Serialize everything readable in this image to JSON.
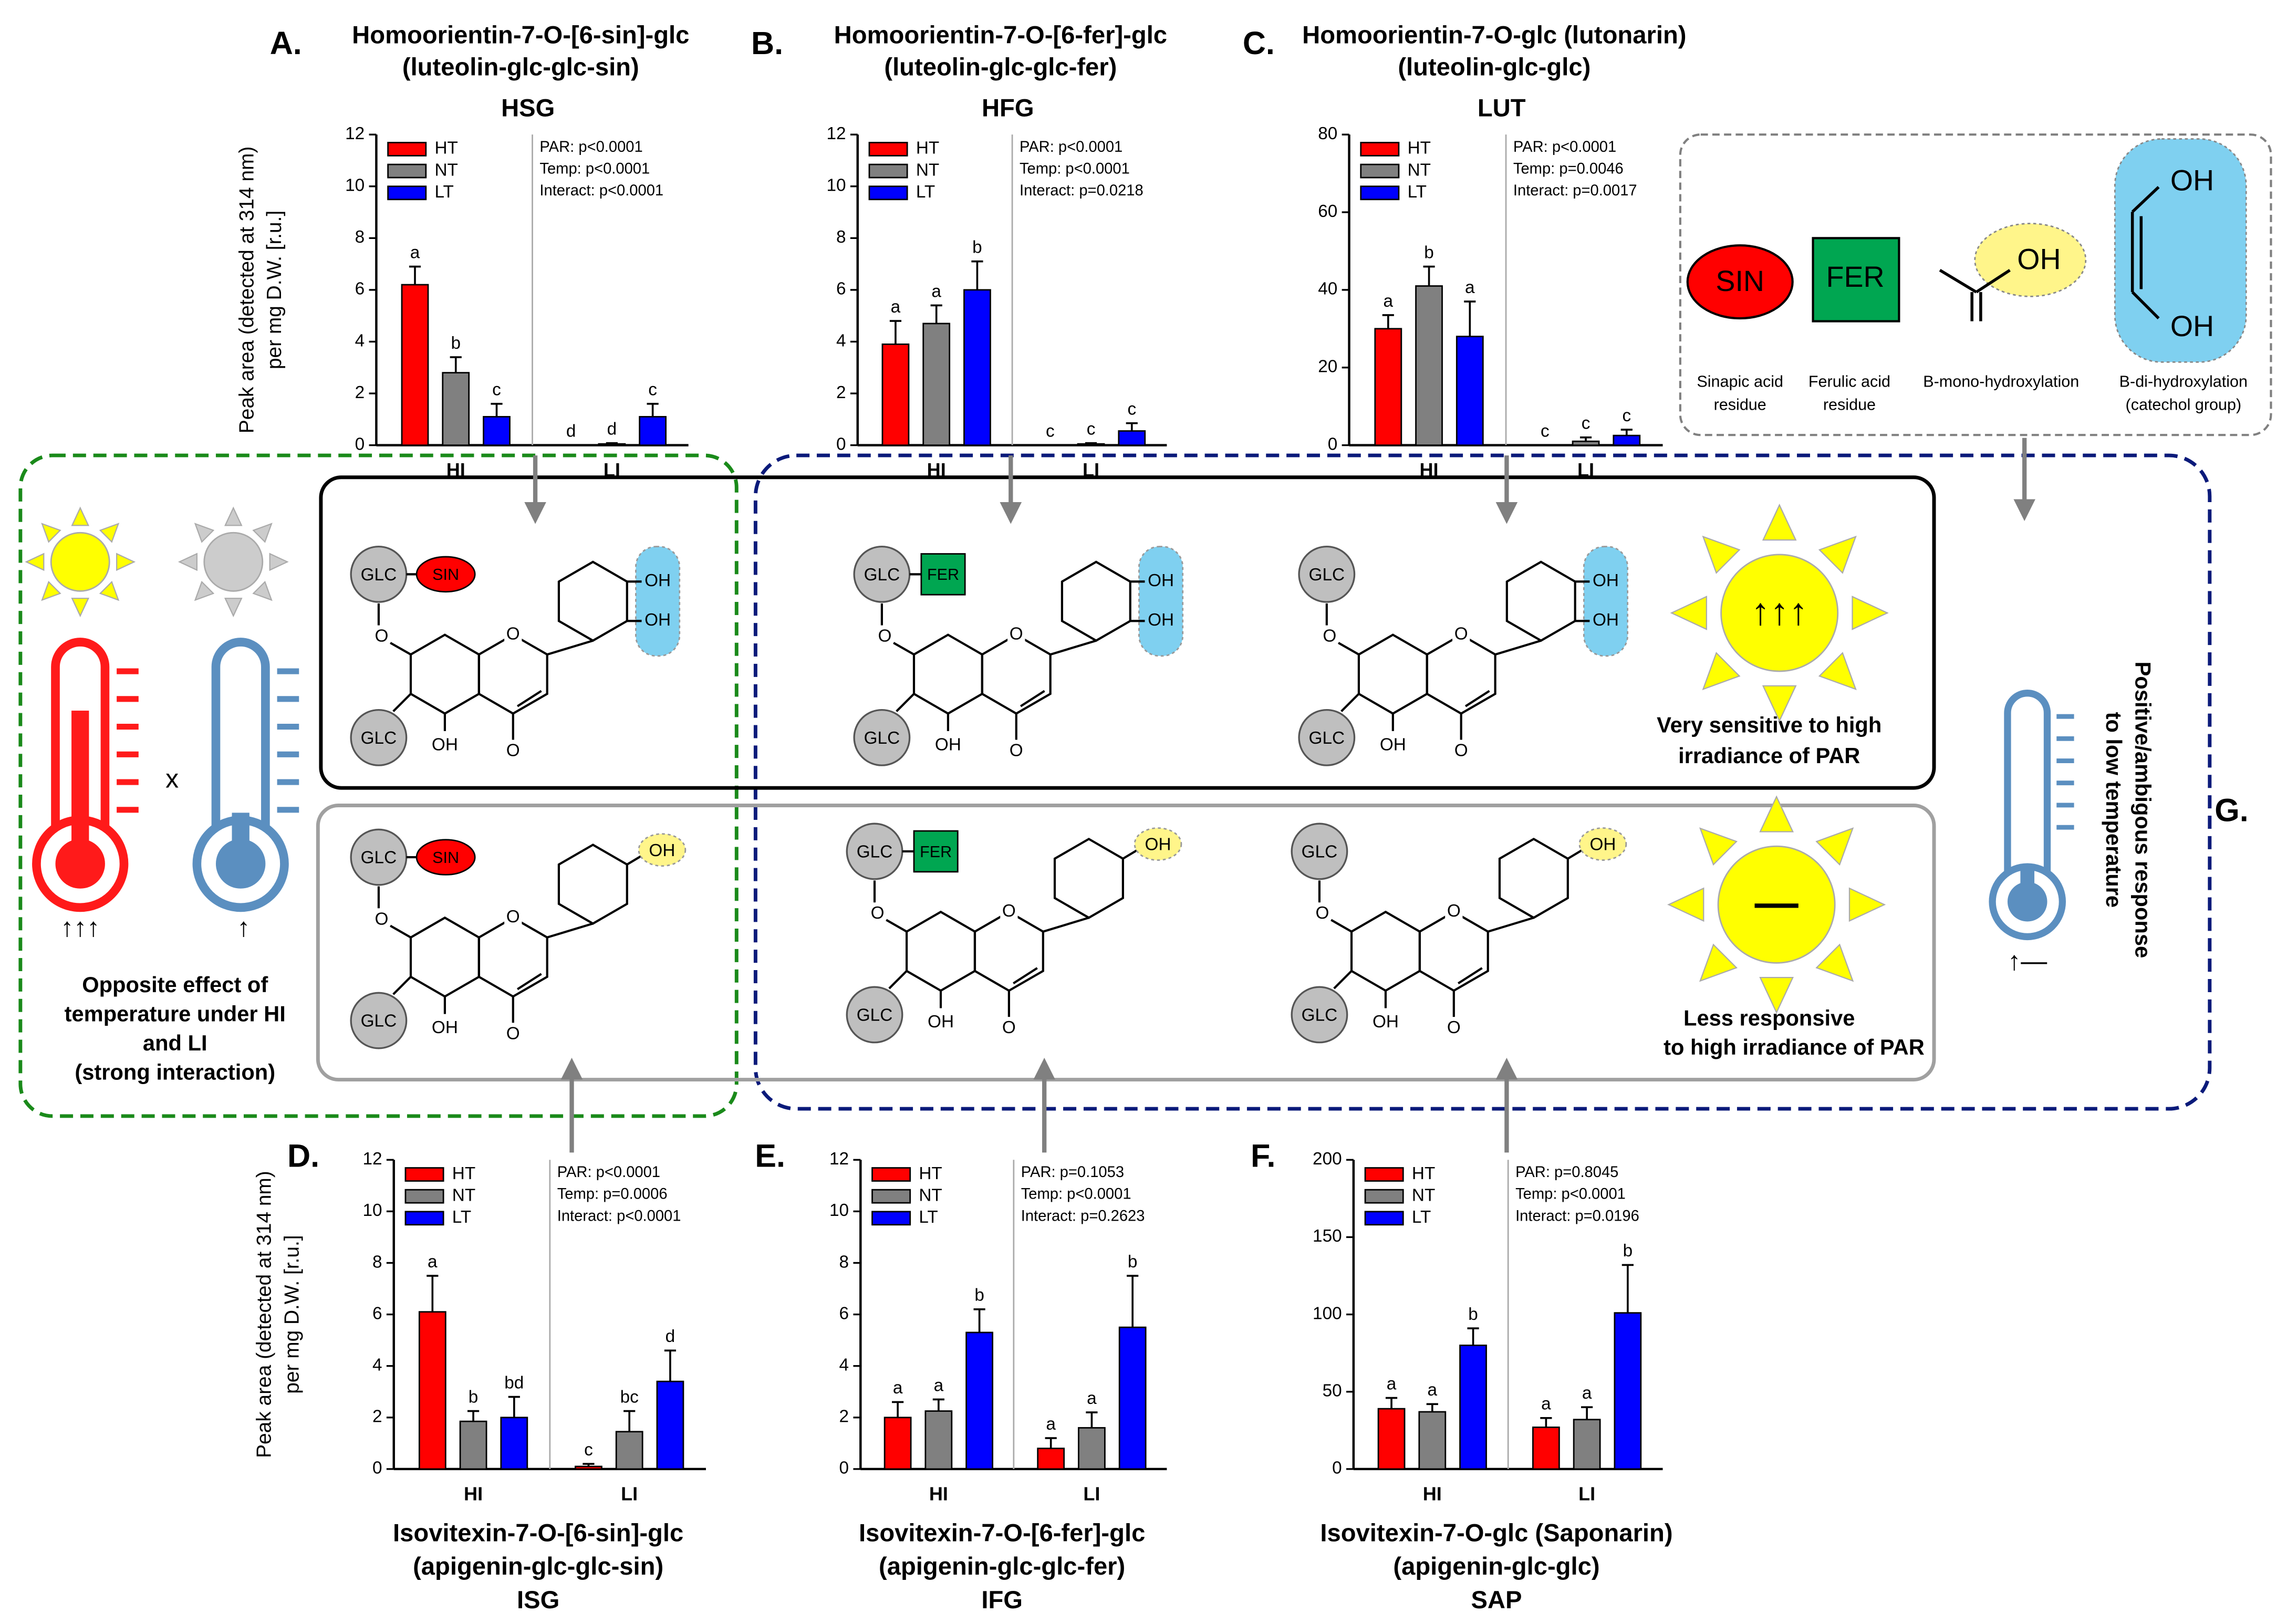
{
  "chart_data": [
    {
      "type": "bar",
      "panel": "A.",
      "title": [
        "Homoorientin-7-O-[6-sin]-glc",
        "(luteolin-glc-glc-sin)"
      ],
      "abbreviation": "HSG",
      "ylabel": [
        "Peak area (detected at 314 nm)",
        "per mg D.W. [r.u.]"
      ],
      "categories": [
        "HI",
        "LI"
      ],
      "ylim": [
        0,
        12
      ],
      "yticks": [
        0,
        2,
        4,
        6,
        8,
        10,
        12
      ],
      "stats": [
        "PAR: p<0.0001",
        "Temp: p<0.0001",
        "Interact: p<0.0001"
      ],
      "series": [
        {
          "name": "HT",
          "color": "#ff0000",
          "values": [
            6.2,
            0
          ],
          "errors": [
            0.7,
            0
          ],
          "significance": [
            "a",
            "d"
          ]
        },
        {
          "name": "NT",
          "color": "#808080",
          "values": [
            2.8,
            0.05
          ],
          "errors": [
            0.6,
            0.03
          ],
          "significance": [
            "b",
            "d"
          ]
        },
        {
          "name": "LT",
          "color": "#0000ff",
          "values": [
            1.1,
            1.1
          ],
          "errors": [
            0.5,
            0.5
          ],
          "significance": [
            "c",
            "c"
          ]
        }
      ]
    },
    {
      "type": "bar",
      "panel": "B.",
      "title": [
        "Homoorientin-7-O-[6-fer]-glc",
        "(luteolin-glc-glc-fer)"
      ],
      "abbreviation": "HFG",
      "categories": [
        "HI",
        "LI"
      ],
      "ylim": [
        0,
        12
      ],
      "yticks": [
        0,
        2,
        4,
        6,
        8,
        10,
        12
      ],
      "stats": [
        "PAR: p<0.0001",
        "Temp: p<0.0001",
        "Interact: p=0.0218"
      ],
      "series": [
        {
          "name": "HT",
          "color": "#ff0000",
          "values": [
            3.9,
            0
          ],
          "errors": [
            0.9,
            0
          ],
          "significance": [
            "a",
            "c"
          ]
        },
        {
          "name": "NT",
          "color": "#808080",
          "values": [
            4.7,
            0.05
          ],
          "errors": [
            0.7,
            0.03
          ],
          "significance": [
            "a",
            "c"
          ]
        },
        {
          "name": "LT",
          "color": "#0000ff",
          "values": [
            6.0,
            0.55
          ],
          "errors": [
            1.1,
            0.3
          ],
          "significance": [
            "b",
            "c"
          ]
        }
      ]
    },
    {
      "type": "bar",
      "panel": "C.",
      "title": [
        "Homoorientin-7-O-glc (lutonarin)",
        "(luteolin-glc-glc)"
      ],
      "abbreviation": "LUT",
      "categories": [
        "HI",
        "LI"
      ],
      "ylim": [
        0,
        80
      ],
      "yticks": [
        0,
        20,
        40,
        60,
        80
      ],
      "stats": [
        "PAR: p<0.0001",
        "Temp: p=0.0046",
        "Interact: p=0.0017"
      ],
      "series": [
        {
          "name": "HT",
          "color": "#ff0000",
          "values": [
            30,
            0
          ],
          "errors": [
            3.5,
            0
          ],
          "significance": [
            "a",
            "c"
          ]
        },
        {
          "name": "NT",
          "color": "#808080",
          "values": [
            41,
            1
          ],
          "errors": [
            5,
            1
          ],
          "significance": [
            "b",
            "c"
          ]
        },
        {
          "name": "LT",
          "color": "#0000ff",
          "values": [
            28,
            2.5
          ],
          "errors": [
            9,
            1.5
          ],
          "significance": [
            "a",
            "c"
          ]
        }
      ]
    },
    {
      "type": "bar",
      "panel": "D.",
      "title": [
        "Isovitexin-7-O-[6-sin]-glc",
        "(apigenin-glc-glc-sin)"
      ],
      "abbreviation": "ISG",
      "ylabel": [
        "Peak area (detected at 314 nm)",
        "per mg D.W. [r.u.]"
      ],
      "categories": [
        "HI",
        "LI"
      ],
      "ylim": [
        0,
        12
      ],
      "yticks": [
        0,
        2,
        4,
        6,
        8,
        10,
        12
      ],
      "stats": [
        "PAR: p<0.0001",
        "Temp: p=0.0006",
        "Interact: p<0.0001"
      ],
      "series": [
        {
          "name": "HT",
          "color": "#ff0000",
          "values": [
            6.1,
            0.1
          ],
          "errors": [
            1.4,
            0.1
          ],
          "significance": [
            "a",
            "c"
          ]
        },
        {
          "name": "NT",
          "color": "#808080",
          "values": [
            1.85,
            1.45
          ],
          "errors": [
            0.4,
            0.8
          ],
          "significance": [
            "b",
            "bc"
          ]
        },
        {
          "name": "LT",
          "color": "#0000ff",
          "values": [
            2.0,
            3.4
          ],
          "errors": [
            0.8,
            1.2
          ],
          "significance": [
            "bd",
            "d"
          ]
        }
      ]
    },
    {
      "type": "bar",
      "panel": "E.",
      "title": [
        "Isovitexin-7-O-[6-fer]-glc",
        "(apigenin-glc-glc-fer)"
      ],
      "abbreviation": "IFG",
      "categories": [
        "HI",
        "LI"
      ],
      "ylim": [
        0,
        12
      ],
      "yticks": [
        0,
        2,
        4,
        6,
        8,
        10,
        12
      ],
      "stats": [
        "PAR: p=0.1053",
        "Temp: p<0.0001",
        "Interact: p=0.2623"
      ],
      "series": [
        {
          "name": "HT",
          "color": "#ff0000",
          "values": [
            2.0,
            0.8
          ],
          "errors": [
            0.6,
            0.4
          ],
          "significance": [
            "a",
            "a"
          ]
        },
        {
          "name": "NT",
          "color": "#808080",
          "values": [
            2.25,
            1.6
          ],
          "errors": [
            0.45,
            0.6
          ],
          "significance": [
            "a",
            "a"
          ]
        },
        {
          "name": "LT",
          "color": "#0000ff",
          "values": [
            5.3,
            5.5
          ],
          "errors": [
            0.9,
            2.0
          ],
          "significance": [
            "b",
            "b"
          ]
        }
      ]
    },
    {
      "type": "bar",
      "panel": "F.",
      "title": [
        "Isovitexin-7-O-glc (Saponarin)",
        "(apigenin-glc-glc)"
      ],
      "abbreviation": "SAP",
      "categories": [
        "HI",
        "LI"
      ],
      "ylim": [
        0,
        200
      ],
      "yticks": [
        0,
        50,
        100,
        150,
        200
      ],
      "stats": [
        "PAR: p=0.8045",
        "Temp: p<0.0001",
        "Interact: p=0.0196"
      ],
      "series": [
        {
          "name": "HT",
          "color": "#ff0000",
          "values": [
            39,
            27
          ],
          "errors": [
            7,
            6
          ],
          "significance": [
            "a",
            "a"
          ]
        },
        {
          "name": "NT",
          "color": "#808080",
          "values": [
            37,
            32
          ],
          "errors": [
            5,
            8
          ],
          "significance": [
            "a",
            "a"
          ]
        },
        {
          "name": "LT",
          "color": "#0000ff",
          "values": [
            80,
            101
          ],
          "errors": [
            11,
            31
          ],
          "significance": [
            "b",
            "b"
          ]
        }
      ]
    }
  ],
  "diagram": {
    "labels": {
      "glc": "GLC",
      "sin": "SIN",
      "fer": "FER",
      "oh": "OH",
      "o": "O"
    },
    "sensitive": [
      "Very sensitive to high",
      "irradiance of PAR"
    ],
    "less": [
      "Less responsive",
      "to high irradiance of PAR"
    ],
    "opposite": [
      "Opposite effect of",
      "temperature under HI",
      "and LI",
      "(strong interaction)"
    ],
    "low_temp": [
      "Positive/ambigous response",
      "to low temperature"
    ],
    "panel_g": "G.",
    "times": "x",
    "arrows_hot": "↑↑↑",
    "arrow_cold": "↑",
    "arrow_low": "↑—",
    "sun_high": "↑↑↑",
    "sun_less": "—",
    "legend": {
      "sin_caption": [
        "Sinapic acid",
        "residue"
      ],
      "fer_caption": [
        "Ferulic acid",
        "residue"
      ],
      "mono": "B-mono-hydroxylation",
      "di": [
        "B-di-hydroxylation",
        "(catechol group)"
      ]
    }
  }
}
